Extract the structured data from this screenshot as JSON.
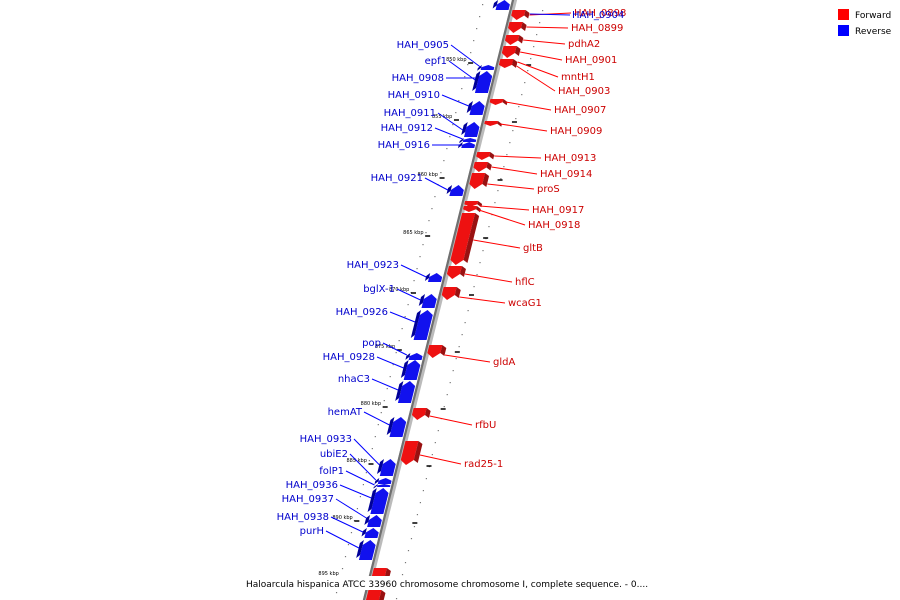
{
  "caption": "Haloarcula hispanica ATCC 33960 chromosome chromosome I, complete sequence. - 0....",
  "legend": [
    {
      "label": "Forward",
      "color": "#ff0000"
    },
    {
      "label": "Reverse",
      "color": "#0000ff"
    }
  ],
  "axis_ticks": [
    "850 kbp",
    "855 kbp",
    "860 kbp",
    "865 kbp",
    "870 kbp",
    "875 kbp",
    "880 kbp",
    "885 kbp",
    "890 kbp",
    "895 kbp"
  ],
  "forward_genes": [
    {
      "label": "HAH_0898"
    },
    {
      "label": "HAH_0899"
    },
    {
      "label": "pdhA2"
    },
    {
      "label": "HAH_0901"
    },
    {
      "label": "mntH1"
    },
    {
      "label": "HAH_0903"
    },
    {
      "label": "HAH_0907"
    },
    {
      "label": "HAH_0909"
    },
    {
      "label": "HAH_0913"
    },
    {
      "label": "HAH_0914"
    },
    {
      "label": "proS"
    },
    {
      "label": "HAH_0917"
    },
    {
      "label": "HAH_0918"
    },
    {
      "label": "gltB"
    },
    {
      "label": "hflC"
    },
    {
      "label": "wcaG1"
    },
    {
      "label": "gldA"
    },
    {
      "label": "rfbU"
    },
    {
      "label": "rad25-1"
    }
  ],
  "reverse_genes": [
    {
      "label": "HAH_0904"
    },
    {
      "label": "HAH_0905"
    },
    {
      "label": "epf1"
    },
    {
      "label": "HAH_0908"
    },
    {
      "label": "HAH_0910"
    },
    {
      "label": "HAH_0911"
    },
    {
      "label": "HAH_0912"
    },
    {
      "label": "HAH_0916"
    },
    {
      "label": "HAH_0921"
    },
    {
      "label": "HAH_0923"
    },
    {
      "label": "bglX-1"
    },
    {
      "label": "HAH_0926"
    },
    {
      "label": "pop"
    },
    {
      "label": "HAH_0928"
    },
    {
      "label": "nhaC3"
    },
    {
      "label": "hemAT"
    },
    {
      "label": "HAH_0933"
    },
    {
      "label": "ubiE2"
    },
    {
      "label": "folP1"
    },
    {
      "label": "HAH_0936"
    },
    {
      "label": "HAH_0937"
    },
    {
      "label": "HAH_0938"
    },
    {
      "label": "purH"
    }
  ]
}
